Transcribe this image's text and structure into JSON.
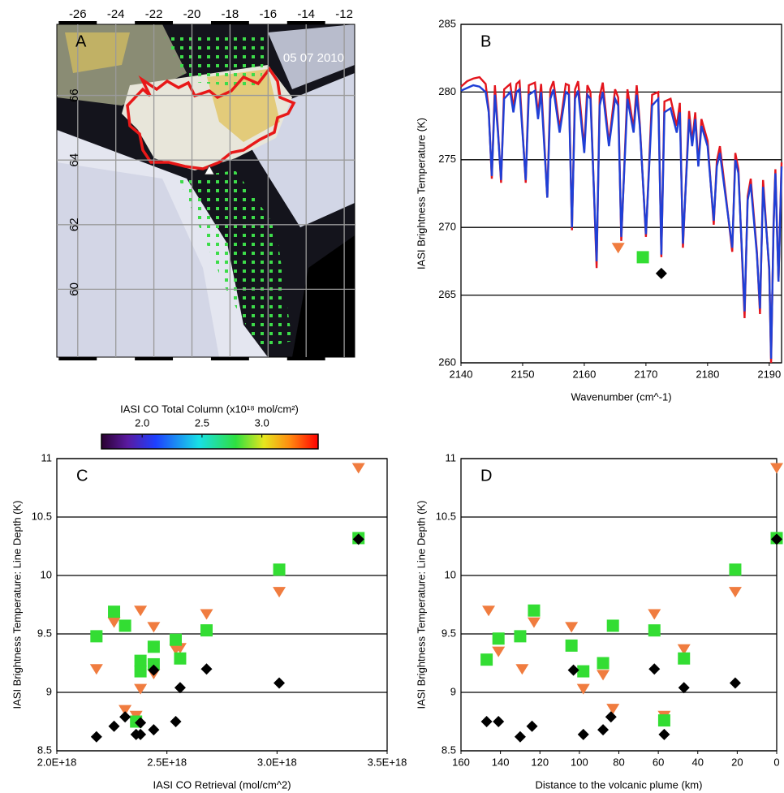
{
  "chart_data": [
    {
      "type": "map",
      "label": "A",
      "annotation": "05 07 2010",
      "xlim": [
        -27.1,
        -11.45
      ],
      "xticks": [
        -26,
        -24,
        -22,
        -20,
        -18,
        -16,
        -14,
        -12
      ],
      "ylim": [
        57.9,
        68.2
      ],
      "yticks": [
        60,
        62,
        64,
        66
      ],
      "colorbar": {
        "title": "IASI CO Total Column (x10¹⁸ mol/cm²)",
        "lim": [
          1.66,
          3.47
        ],
        "ticks": [
          {
            "value": 2,
            "label": "2.0"
          },
          {
            "value": 2.5,
            "label": "2.5"
          },
          {
            "value": 3,
            "label": "3.0"
          }
        ]
      }
    },
    {
      "type": "line",
      "label": "B",
      "x_label": "Wavenumber (cm^-1)",
      "y_label": "IASI Brightness Temperature (K)",
      "xlim": [
        2140,
        2192
      ],
      "xticks": [
        2140,
        2150,
        2160,
        2170,
        2180,
        2190
      ],
      "ylim": [
        260,
        285
      ],
      "yticks": [
        260,
        265,
        270,
        275,
        280,
        285
      ],
      "grid": true,
      "x": [
        2140,
        2141,
        2142,
        2143,
        2144,
        2144.5,
        2145,
        2145.5,
        2146,
        2146.5,
        2147,
        2148,
        2148.5,
        2149,
        2149.5,
        2150.5,
        2151,
        2152,
        2152.5,
        2153,
        2154,
        2154.5,
        2155,
        2156,
        2157,
        2157.5,
        2158,
        2158.5,
        2159,
        2160,
        2160.5,
        2161,
        2162,
        2162.5,
        2163,
        2164,
        2165,
        2165.5,
        2166,
        2167,
        2168,
        2168.5,
        2169,
        2170,
        2171,
        2172,
        2172.5,
        2173,
        2174,
        2175,
        2175.5,
        2176,
        2177,
        2177.5,
        2178,
        2178.5,
        2179,
        2180,
        2181,
        2181.5,
        2182,
        2183,
        2184,
        2184.5,
        2185,
        2186,
        2186.5,
        2187,
        2188,
        2188.5,
        2189,
        2190,
        2190.3,
        2190.7,
        2191,
        2191.5,
        2192
      ],
      "series": [
        {
          "color": "#e3141c",
          "values": [
            280.4,
            280.8,
            281.0,
            281.1,
            280.6,
            278.7,
            273.6,
            280.5,
            277.2,
            273.3,
            280.2,
            280.6,
            278.8,
            280.6,
            280.8,
            273.3,
            280.5,
            280.7,
            278.3,
            280.6,
            272.2,
            280.2,
            280.8,
            277.3,
            280.6,
            280.5,
            269.8,
            280.2,
            280.8,
            275.8,
            280.5,
            280.0,
            267.0,
            279.7,
            280.7,
            276.2,
            280.2,
            279.6,
            269.0,
            280.2,
            277.3,
            280.5,
            277.7,
            269.3,
            279.8,
            280.0,
            267.8,
            279.3,
            279.5,
            277.5,
            279.2,
            268.5,
            278.6,
            276.3,
            278.5,
            274.6,
            278.0,
            276.4,
            270.2,
            274.9,
            276.0,
            272.2,
            268.2,
            275.5,
            274.3,
            263.3,
            272.3,
            273.6,
            268.2,
            263.6,
            273.5,
            266.8,
            260.0,
            270.3,
            274.3,
            266.0,
            274.8
          ]
        },
        {
          "color": "#1f3fd6",
          "values": [
            280.1,
            280.3,
            280.5,
            280.4,
            280.0,
            278.5,
            273.8,
            279.8,
            277.0,
            273.5,
            279.5,
            280.0,
            278.5,
            280.0,
            280.2,
            273.5,
            279.8,
            280.1,
            278.0,
            280.0,
            272.2,
            279.5,
            280.2,
            277.0,
            280.0,
            279.8,
            270.0,
            279.5,
            280.1,
            275.5,
            279.8,
            279.5,
            267.5,
            279.0,
            280.0,
            276.0,
            279.5,
            279.0,
            269.3,
            279.5,
            277.0,
            279.8,
            277.5,
            269.5,
            279.0,
            279.5,
            268.0,
            278.5,
            278.8,
            277.0,
            278.5,
            268.8,
            278.0,
            276.0,
            278.0,
            274.5,
            277.5,
            276.0,
            270.5,
            274.5,
            275.5,
            272.0,
            268.5,
            275.0,
            274.0,
            263.8,
            272.0,
            273.2,
            268.0,
            264.0,
            273.0,
            267.0,
            260.3,
            270.0,
            274.0,
            266.0,
            274.5
          ]
        },
        {
          "color": "#f07c3f",
          "marker": "triangle",
          "x": [
            2165.5
          ],
          "values": [
            268.5
          ]
        },
        {
          "color": "#33dd33",
          "marker": "square",
          "x": [
            2169.5
          ],
          "values": [
            267.8
          ]
        },
        {
          "color": "#000000",
          "marker": "diamond",
          "x": [
            2172.5
          ],
          "values": [
            266.6
          ]
        }
      ]
    },
    {
      "type": "scatter",
      "label": "C",
      "x_label": "IASI CO Retrieval (mol/cm^2)",
      "y_label": "IASI Brightness Temperature: Line Depth (K)",
      "xlim": [
        2e+18,
        3.5e+18
      ],
      "xticks": [
        {
          "value": 2e+18,
          "label": "2.0E+18"
        },
        {
          "value": 2.5e+18,
          "label": "2.5E+18"
        },
        {
          "value": 3e+18,
          "label": "3.0E+18"
        },
        {
          "value": 3.5e+18,
          "label": "3.5E+18"
        }
      ],
      "ylim": [
        8.5,
        11
      ],
      "yticks": [
        8.5,
        9,
        9.5,
        10,
        10.5,
        11
      ],
      "grid": true,
      "series": [
        {
          "color": "#f07c3f",
          "marker": "triangle",
          "x": [
            2.18e+18,
            2.26e+18,
            2.31e+18,
            2.36e+18,
            2.38e+18,
            2.38e+18,
            2.44e+18,
            2.44e+18,
            2.54e+18,
            2.56e+18,
            2.68e+18,
            3.01e+18,
            3.37e+18
          ],
          "values": [
            9.2,
            9.6,
            8.85,
            8.8,
            9.7,
            9.03,
            9.56,
            9.16,
            9.37,
            9.38,
            9.67,
            9.86,
            10.92
          ]
        },
        {
          "color": "#33dd33",
          "marker": "square",
          "x": [
            2.18e+18,
            2.26e+18,
            2.31e+18,
            2.36e+18,
            2.38e+18,
            2.38e+18,
            2.44e+18,
            2.44e+18,
            2.54e+18,
            2.56e+18,
            2.68e+18,
            3.01e+18,
            3.37e+18
          ],
          "values": [
            9.48,
            9.69,
            9.57,
            8.75,
            9.27,
            9.18,
            9.39,
            9.24,
            9.45,
            9.29,
            9.53,
            10.05,
            10.32
          ]
        },
        {
          "color": "#000000",
          "marker": "diamond",
          "x": [
            2.18e+18,
            2.26e+18,
            2.31e+18,
            2.36e+18,
            2.38e+18,
            2.38e+18,
            2.44e+18,
            2.44e+18,
            2.54e+18,
            2.56e+18,
            2.68e+18,
            3.01e+18,
            3.37e+18
          ],
          "values": [
            8.62,
            8.71,
            8.79,
            8.64,
            8.74,
            8.64,
            8.68,
            9.19,
            8.75,
            9.04,
            9.2,
            9.08,
            10.31
          ]
        }
      ]
    },
    {
      "type": "scatter",
      "label": "D",
      "x_label": "Distance to the volcanic plume (km)",
      "y_label": "IASI Brightness Temperature: Line Depth (K)",
      "xlim": [
        160,
        0
      ],
      "xticks": [
        160,
        140,
        120,
        100,
        80,
        60,
        40,
        20,
        0
      ],
      "ylim": [
        8.5,
        11
      ],
      "yticks": [
        8.5,
        9,
        9.5,
        10,
        10.5,
        11
      ],
      "grid": true,
      "series": [
        {
          "color": "#f07c3f",
          "marker": "triangle",
          "x": [
            146,
            141,
            129,
            123,
            104,
            98,
            88,
            83,
            62,
            57,
            47,
            21,
            0
          ],
          "values": [
            9.7,
            9.35,
            9.2,
            9.6,
            9.56,
            9.03,
            9.15,
            8.86,
            9.67,
            8.8,
            9.37,
            9.86,
            10.92
          ]
        },
        {
          "color": "#33dd33",
          "marker": "square",
          "x": [
            147,
            141,
            130,
            123,
            104,
            98,
            88,
            83,
            62,
            57,
            47,
            21,
            0
          ],
          "values": [
            9.28,
            9.46,
            9.48,
            9.7,
            9.4,
            9.18,
            9.25,
            9.57,
            9.53,
            8.76,
            9.29,
            10.05,
            10.32
          ]
        },
        {
          "color": "#000000",
          "marker": "diamond",
          "x": [
            147,
            141,
            130,
            124,
            103,
            98,
            88,
            84,
            62,
            57,
            47,
            21,
            0
          ],
          "values": [
            8.75,
            8.75,
            8.62,
            8.71,
            9.19,
            8.64,
            8.68,
            8.79,
            9.2,
            8.64,
            9.04,
            9.08,
            10.31
          ]
        }
      ]
    }
  ]
}
